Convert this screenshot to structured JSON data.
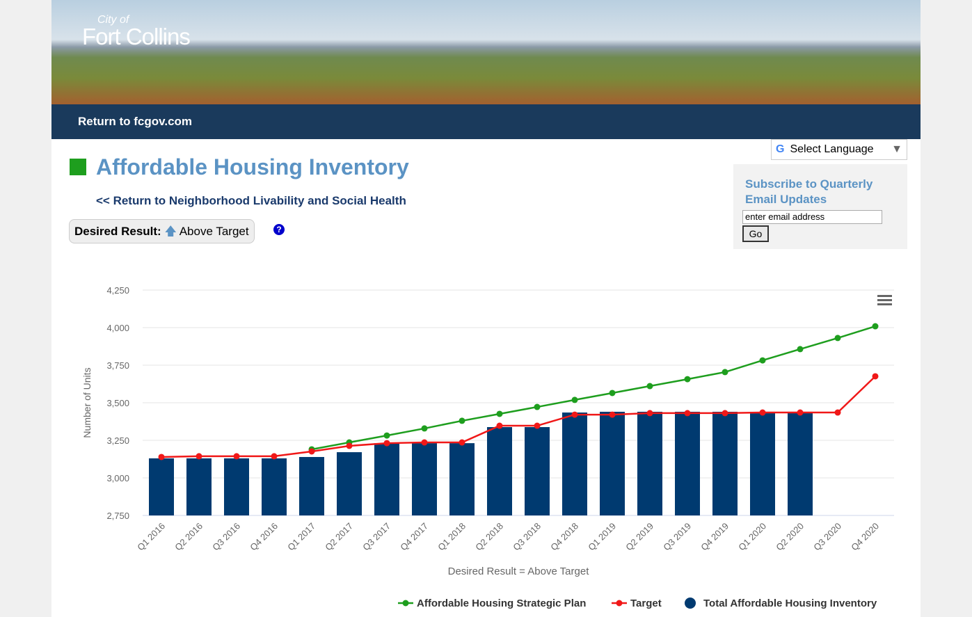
{
  "header": {
    "logo_small": "City of",
    "logo_large": "Fort Collins",
    "nav_link": "Return to fcgov.com"
  },
  "language": {
    "label": "Select Language"
  },
  "page": {
    "title": "Affordable Housing Inventory",
    "back_link": "<< Return to Neighborhood Livability and Social Health",
    "desired_label": "Desired Result:",
    "desired_value": "Above Target",
    "help": "?"
  },
  "subscribe": {
    "title": "Subscribe to Quarterly Email Updates",
    "placeholder": "enter email address",
    "button": "Go"
  },
  "chart_data": {
    "type": "bar",
    "x_label": "Desired Result = Above Target",
    "y_label": "Number of Units",
    "categories": [
      "Q1 2016",
      "Q2 2016",
      "Q3 2016",
      "Q4 2016",
      "Q1 2017",
      "Q2 2017",
      "Q3 2017",
      "Q4 2017",
      "Q1 2018",
      "Q2 2018",
      "Q3 2018",
      "Q4 2018",
      "Q1 2019",
      "Q2 2019",
      "Q3 2019",
      "Q4 2019",
      "Q1 2020",
      "Q2 2020",
      "Q3 2020",
      "Q4 2020"
    ],
    "series": [
      {
        "name": "Affordable Housing Strategic Plan",
        "type": "line",
        "color": "#1e9e1e",
        "values": [
          null,
          null,
          null,
          null,
          3190,
          3236,
          3282,
          3329,
          3380,
          3426,
          3472,
          3519,
          3565,
          3611,
          3657,
          3704,
          3782,
          3857,
          3931,
          4009
        ]
      },
      {
        "name": "Target",
        "type": "line",
        "color": "#f01818",
        "values": [
          3139,
          3144,
          3144,
          3144,
          3176,
          3213,
          3231,
          3236,
          3236,
          3347,
          3347,
          3421,
          3421,
          3431,
          3431,
          3431,
          3435,
          3435,
          3435,
          3676
        ]
      },
      {
        "name": "Total Affordable Housing Inventory",
        "type": "bar",
        "color": "#003a70",
        "values": [
          3130,
          3130,
          3130,
          3130,
          3139,
          3171,
          3231,
          3231,
          3231,
          3338,
          3338,
          3435,
          3440,
          3440,
          3440,
          3440,
          3440,
          3440,
          null,
          null
        ]
      }
    ],
    "ylim": [
      2750,
      4250
    ],
    "yticks": [
      {
        "value": 2750,
        "label": "2,750"
      },
      {
        "value": 3000,
        "label": "3,000"
      },
      {
        "value": 3250,
        "label": "3,250"
      },
      {
        "value": 3500,
        "label": "3,500"
      },
      {
        "value": 3750,
        "label": "3,750"
      },
      {
        "value": 4000,
        "label": "4,000"
      },
      {
        "value": 4250,
        "label": "4,250"
      }
    ],
    "grid": true
  }
}
